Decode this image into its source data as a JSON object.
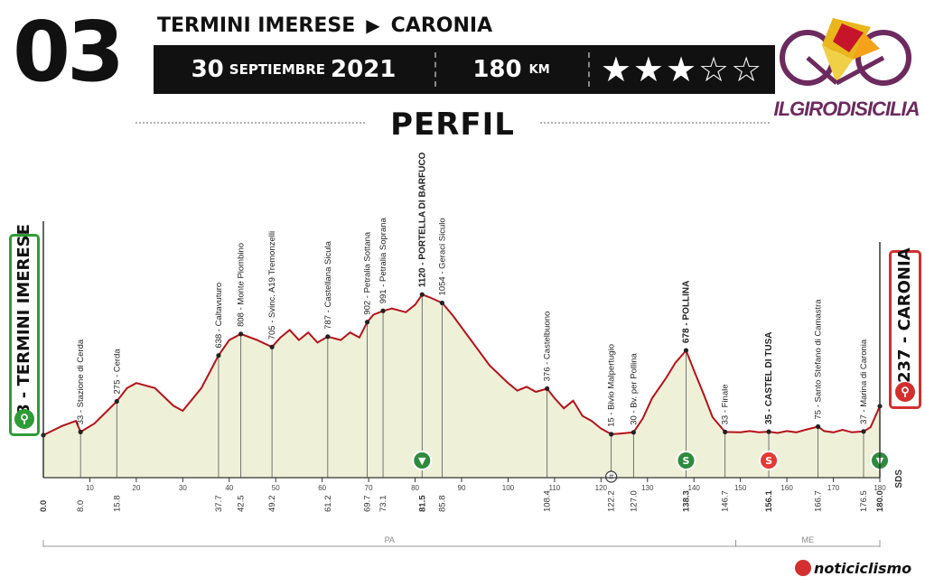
{
  "header": {
    "stage_number": "03",
    "start_city": "TERMINI IMERESE",
    "finish_city": "CARONIA",
    "date_day": "30",
    "date_month": "SEPTIEMBRE",
    "date_year": "2021",
    "distance_value": "180",
    "distance_unit": "KM",
    "stars_filled": 3,
    "stars_total": 5,
    "stars_text": "★★★☆☆",
    "section_title": "PERFIL"
  },
  "logo": {
    "text": "ILGIRODISICILIA"
  },
  "brand": {
    "text": "noticiclismo"
  },
  "badges": {
    "start": "8 - TERMINI IMERESE",
    "finish": "237 - CARONIA",
    "sds": "SDS"
  },
  "colors": {
    "profile_line": "#b5121b",
    "profile_fill": "#eef1d8",
    "start_green": "#2f9b35",
    "finish_red": "#d32f2f",
    "sprint_red": "#e53935",
    "kom_green": "#2e8b3d"
  },
  "chart_data": {
    "type": "area",
    "xlabel": "",
    "ylabel": "",
    "xlim": [
      0,
      180
    ],
    "ylim": [
      0,
      1100
    ],
    "y_ticks": [
      0,
      250,
      500,
      750,
      1000
    ],
    "x_ticks": [
      10,
      20,
      30,
      40,
      50,
      60,
      70,
      80,
      90,
      100,
      110,
      120,
      130,
      140,
      150,
      160,
      170,
      180
    ],
    "profile": [
      [
        0,
        8
      ],
      [
        4,
        80
      ],
      [
        7,
        120
      ],
      [
        8,
        33
      ],
      [
        11,
        100
      ],
      [
        15.8,
        275
      ],
      [
        18,
        380
      ],
      [
        20,
        420
      ],
      [
        24,
        380
      ],
      [
        28,
        240
      ],
      [
        30,
        200
      ],
      [
        34,
        380
      ],
      [
        37.7,
        638
      ],
      [
        40,
        760
      ],
      [
        42.5,
        808
      ],
      [
        46,
        760
      ],
      [
        49.2,
        705
      ],
      [
        51,
        780
      ],
      [
        53,
        840
      ],
      [
        55,
        760
      ],
      [
        57,
        820
      ],
      [
        59,
        740
      ],
      [
        61.2,
        787
      ],
      [
        64,
        760
      ],
      [
        66,
        820
      ],
      [
        68,
        780
      ],
      [
        69.7,
        902
      ],
      [
        71,
        960
      ],
      [
        73.1,
        991
      ],
      [
        75,
        1010
      ],
      [
        78,
        980
      ],
      [
        80,
        1040
      ],
      [
        81.5,
        1120
      ],
      [
        83,
        1100
      ],
      [
        85.8,
        1054
      ],
      [
        88,
        960
      ],
      [
        92,
        760
      ],
      [
        96,
        560
      ],
      [
        100,
        420
      ],
      [
        102,
        360
      ],
      [
        104,
        390
      ],
      [
        106,
        350
      ],
      [
        108.4,
        376
      ],
      [
        110,
        300
      ],
      [
        112,
        220
      ],
      [
        114,
        280
      ],
      [
        116,
        160
      ],
      [
        118,
        120
      ],
      [
        120,
        60
      ],
      [
        122.2,
        15
      ],
      [
        124,
        20
      ],
      [
        127,
        30
      ],
      [
        129,
        140
      ],
      [
        131,
        300
      ],
      [
        134,
        460
      ],
      [
        136,
        580
      ],
      [
        138.3,
        678
      ],
      [
        140,
        520
      ],
      [
        142,
        340
      ],
      [
        144,
        150
      ],
      [
        146.7,
        33
      ],
      [
        150,
        30
      ],
      [
        152,
        40
      ],
      [
        154,
        30
      ],
      [
        156.1,
        35
      ],
      [
        158,
        25
      ],
      [
        160,
        40
      ],
      [
        162,
        30
      ],
      [
        164,
        50
      ],
      [
        166.7,
        75
      ],
      [
        168,
        40
      ],
      [
        170,
        30
      ],
      [
        172,
        50
      ],
      [
        174,
        30
      ],
      [
        176.5,
        37
      ],
      [
        178,
        70
      ],
      [
        180,
        237
      ]
    ],
    "waypoints": [
      {
        "km": "0.0",
        "label": "8 - TERMINI IMERESE",
        "x": 0,
        "y": 8,
        "show_label": false
      },
      {
        "km": "8.0",
        "label": "33 - Stazione di Cerda",
        "x": 8,
        "y": 33
      },
      {
        "km": "15.8",
        "label": "275 - Cerda",
        "x": 15.8,
        "y": 275
      },
      {
        "km": "37.7",
        "label": "638 - Caltavuturo",
        "x": 37.7,
        "y": 638
      },
      {
        "km": "42.5",
        "label": "808 - Monte Piombino",
        "x": 42.5,
        "y": 808
      },
      {
        "km": "49.2",
        "label": "705 - Svinc. A19 Tremonzelli",
        "x": 49.2,
        "y": 705
      },
      {
        "km": "61.2",
        "label": "787 - Castellana Sicula",
        "x": 61.2,
        "y": 787
      },
      {
        "km": "69.7",
        "label": "902 - Petralia Sottana",
        "x": 69.7,
        "y": 902
      },
      {
        "km": "73.1",
        "label": "991 - Petralia Soprana",
        "x": 73.1,
        "y": 991
      },
      {
        "km": "81.5",
        "label": "1120 - PORTELLA DI BARFUCO",
        "x": 81.5,
        "y": 1120,
        "bold": true
      },
      {
        "km": "85.8",
        "label": "1054 - Geraci Siculo",
        "x": 85.8,
        "y": 1054
      },
      {
        "km": "108.4",
        "label": "376 - Castelbuono",
        "x": 108.4,
        "y": 376
      },
      {
        "km": "122.2",
        "label": "15 - Bivio Malpertugio",
        "x": 122.2,
        "y": 15
      },
      {
        "km": "127.0",
        "label": "30 - Bv. per Pollina",
        "x": 127,
        "y": 30
      },
      {
        "km": "138.3",
        "label": "678 - POLLINA",
        "x": 138.3,
        "y": 678,
        "bold": true
      },
      {
        "km": "146.7",
        "label": "33 - Finale",
        "x": 146.7,
        "y": 33
      },
      {
        "km": "156.1",
        "label": "35 - CASTEL DI TUSA",
        "x": 156.1,
        "y": 35,
        "bold": true
      },
      {
        "km": "166.7",
        "label": "75 - Santo Stefano di Camastra",
        "x": 166.7,
        "y": 75
      },
      {
        "km": "176.5",
        "label": "37 - Marina di Caronia",
        "x": 176.5,
        "y": 37
      },
      {
        "km": "180.0",
        "label": "237 - CARONIA",
        "x": 180,
        "y": 237,
        "show_label": false
      }
    ],
    "markers": [
      {
        "type": "kom",
        "x": 81.5,
        "text": "▼"
      },
      {
        "type": "kom",
        "x": 138.3,
        "text": "S"
      },
      {
        "type": "sprint",
        "x": 156.1,
        "text": "S"
      },
      {
        "type": "kom",
        "x": 180,
        "text": "▼"
      },
      {
        "type": "feed",
        "x": 122.2,
        "text": "#"
      }
    ],
    "provinces": [
      {
        "name": "PA",
        "from": 0,
        "to": 149
      },
      {
        "name": "ME",
        "from": 149,
        "to": 180
      }
    ]
  }
}
